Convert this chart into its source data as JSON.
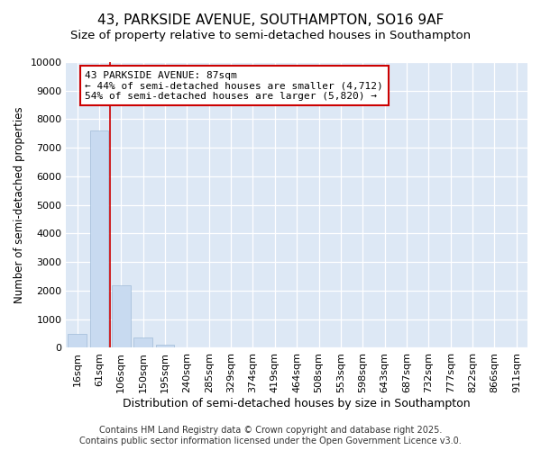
{
  "title1": "43, PARKSIDE AVENUE, SOUTHAMPTON, SO16 9AF",
  "title2": "Size of property relative to semi-detached houses in Southampton",
  "xlabel": "Distribution of semi-detached houses by size in Southampton",
  "ylabel": "Number of semi-detached properties",
  "categories": [
    "16sqm",
    "61sqm",
    "106sqm",
    "150sqm",
    "195sqm",
    "240sqm",
    "285sqm",
    "329sqm",
    "374sqm",
    "419sqm",
    "464sqm",
    "508sqm",
    "553sqm",
    "598sqm",
    "643sqm",
    "687sqm",
    "732sqm",
    "777sqm",
    "822sqm",
    "866sqm",
    "911sqm"
  ],
  "values": [
    500,
    7600,
    2200,
    375,
    100,
    20,
    0,
    0,
    0,
    0,
    0,
    0,
    0,
    0,
    0,
    0,
    0,
    0,
    0,
    0,
    0
  ],
  "bar_color": "#c8daf0",
  "bar_edge_color": "#a0bcd8",
  "vline_x": 1.5,
  "vline_color": "#cc0000",
  "annotation_line1": "43 PARKSIDE AVENUE: 87sqm",
  "annotation_line2": "← 44% of semi-detached houses are smaller (4,712)",
  "annotation_line3": "54% of semi-detached houses are larger (5,820) →",
  "annotation_box_color": "#ffffff",
  "annotation_border_color": "#cc0000",
  "ylim": [
    0,
    10000
  ],
  "yticks": [
    0,
    1000,
    2000,
    3000,
    4000,
    5000,
    6000,
    7000,
    8000,
    9000,
    10000
  ],
  "plot_bg_color": "#dde8f5",
  "fig_bg_color": "#ffffff",
  "footer1": "Contains HM Land Registry data © Crown copyright and database right 2025.",
  "footer2": "Contains public sector information licensed under the Open Government Licence v3.0.",
  "title1_fontsize": 11,
  "title2_fontsize": 9.5,
  "xlabel_fontsize": 9,
  "ylabel_fontsize": 8.5,
  "tick_fontsize": 8,
  "annot_fontsize": 8,
  "footer_fontsize": 7
}
